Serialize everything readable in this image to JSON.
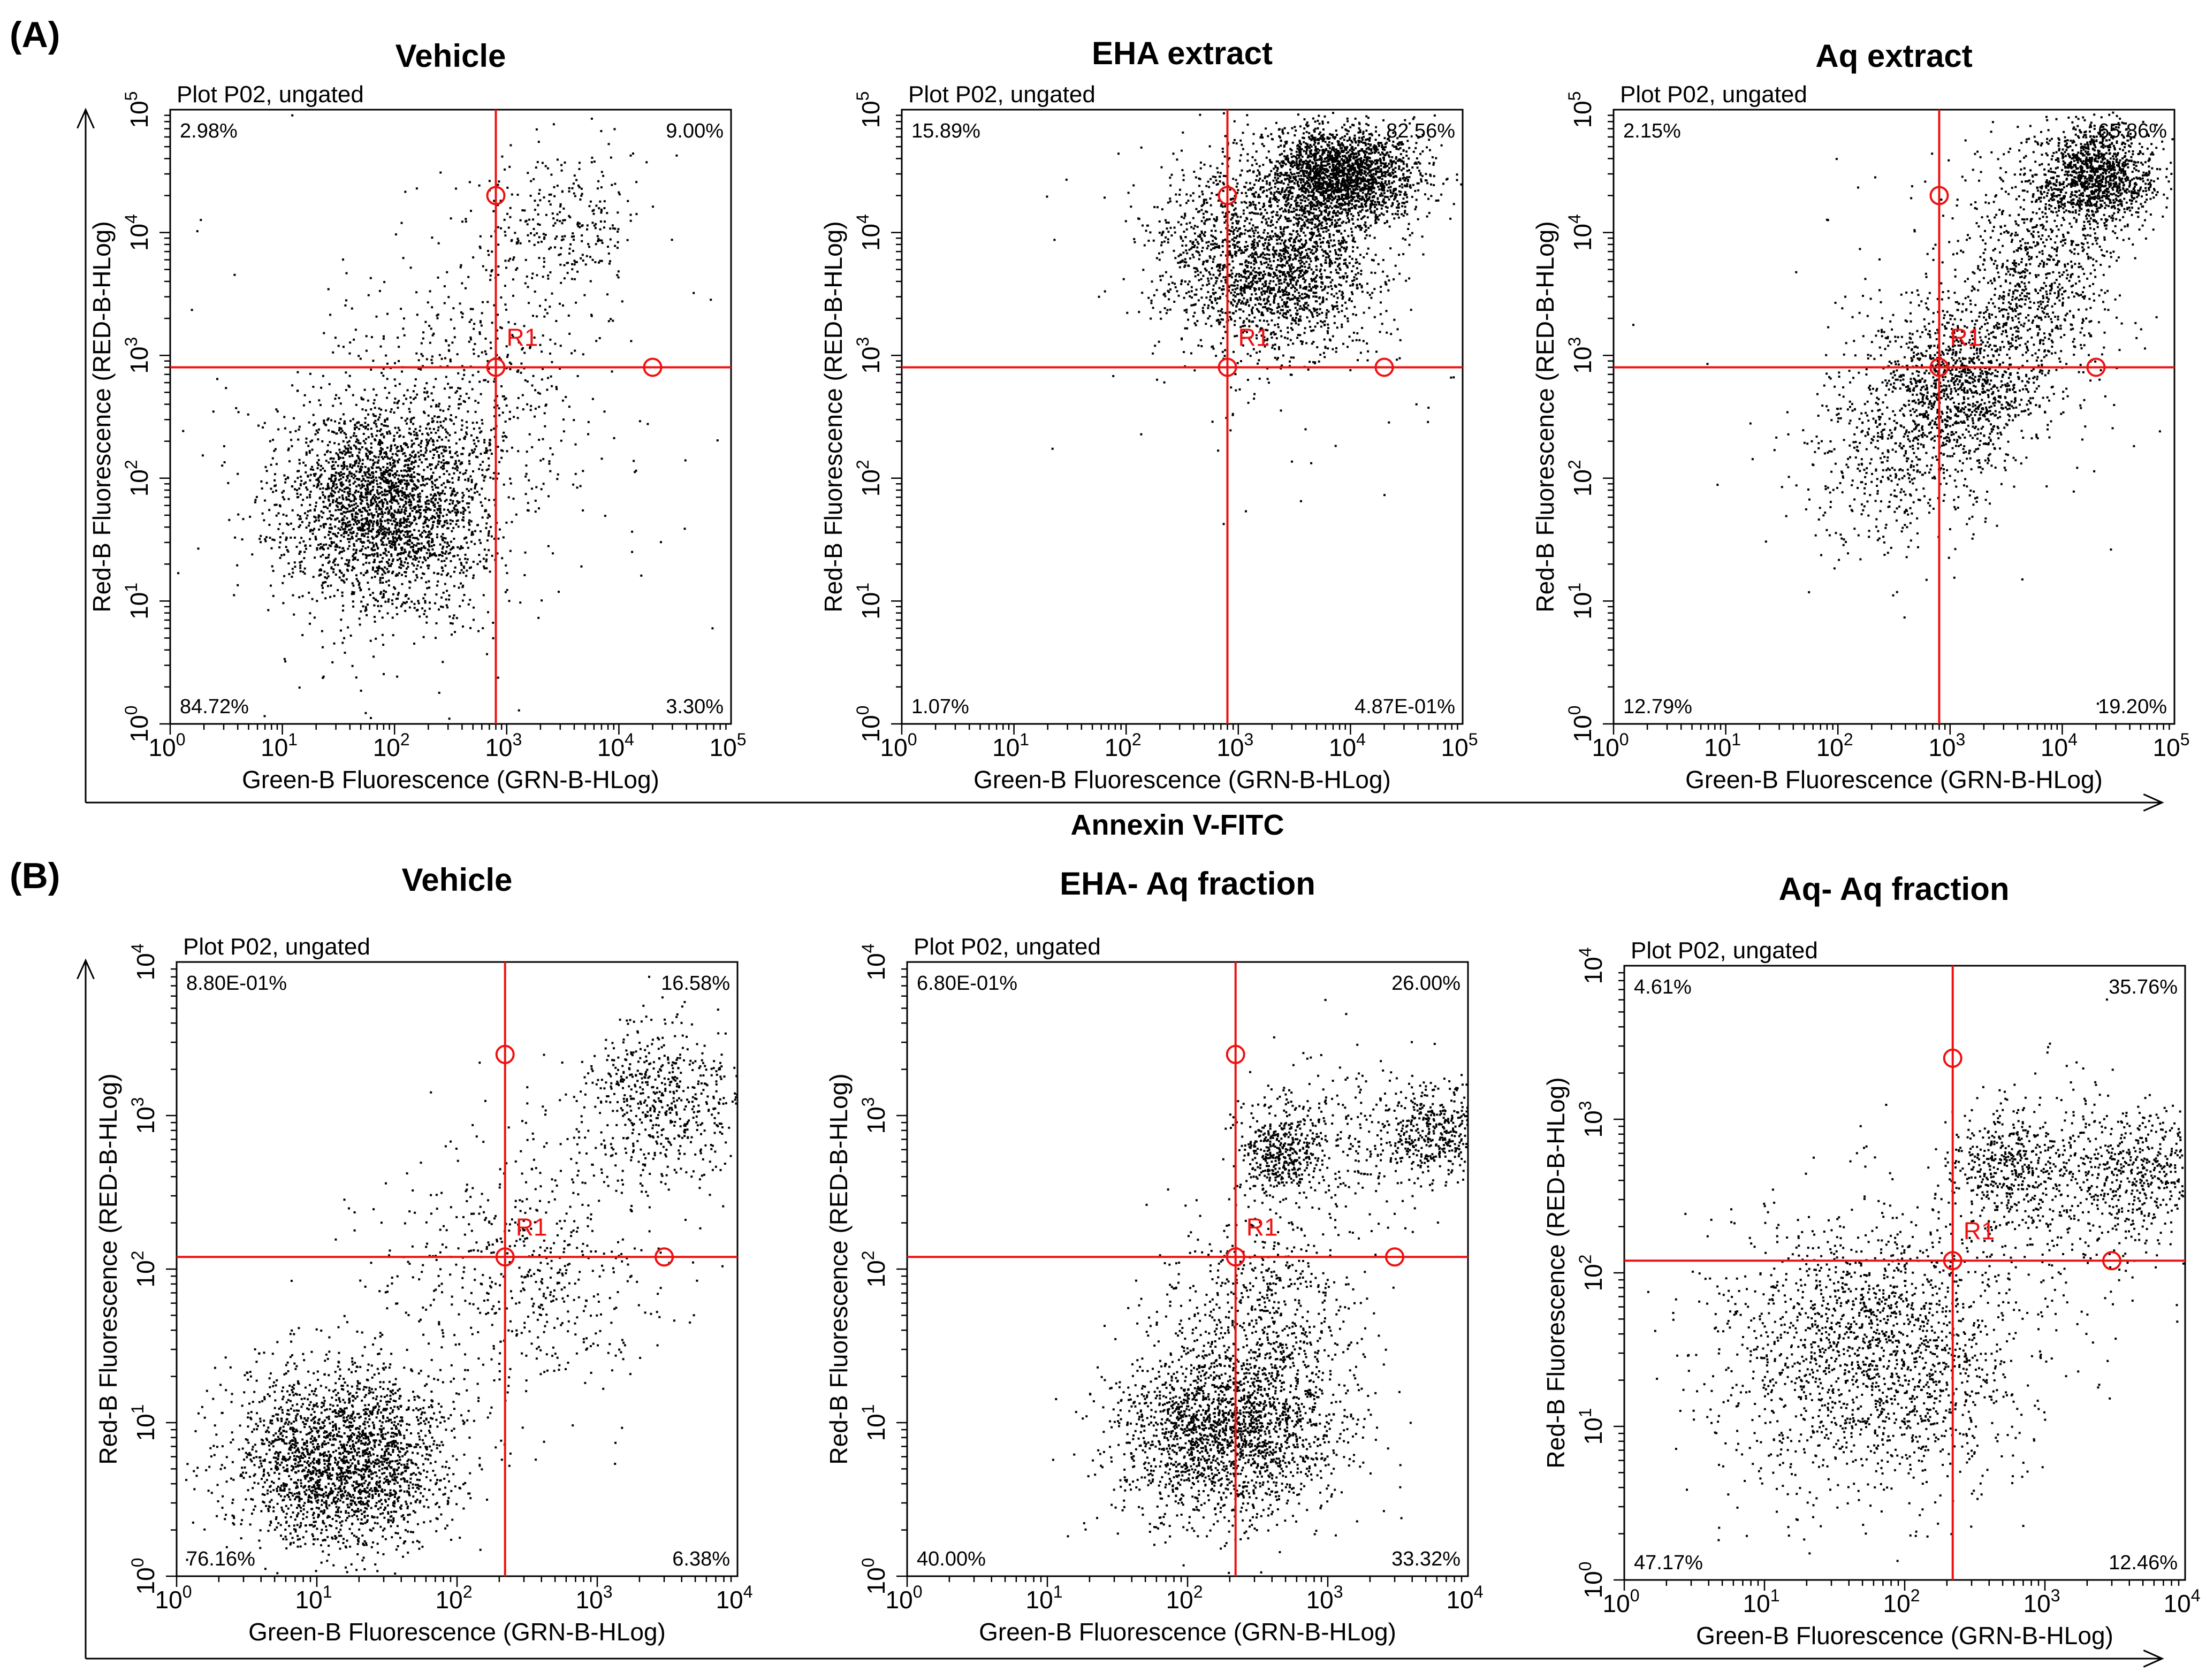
{
  "figure_labels": {
    "a": "(A)",
    "b": "(B)"
  },
  "shared_axis": {
    "xlabel_row_a": "Annexin V-FITC"
  },
  "chart_data": [
    {
      "type": "scatter",
      "panel": "A",
      "title": "Vehicle",
      "plot_label": "Plot P02, ungated",
      "xlabel": "Green-B Fluorescence (GRN-B-HLog)",
      "ylabel": "Red-B Fluorescence (RED-B-HLog)",
      "xscale": "log",
      "yscale": "log",
      "xlim": [
        1,
        100000
      ],
      "ylim": [
        1,
        100000
      ],
      "x_ticks": [
        1,
        10,
        100,
        1000,
        10000,
        100000
      ],
      "y_ticks": [
        1,
        10,
        100,
        1000,
        10000,
        100000
      ],
      "gate_x": 800,
      "gate_y": 800,
      "gate_label": "R1",
      "gate_handles": [
        [
          800,
          20000
        ],
        [
          800,
          800
        ],
        [
          20000,
          800
        ]
      ],
      "quadrants": {
        "ul": "2.98%",
        "ur": "9.00%",
        "ll": "84.72%",
        "lr": "3.30%"
      },
      "clusters": [
        {
          "cx": 80,
          "cy": 60,
          "sx": 0.45,
          "sy": 0.42,
          "n": 2600
        },
        {
          "cx": 3000,
          "cy": 12000,
          "sx": 0.35,
          "sy": 0.3,
          "n": 300
        },
        {
          "cx": 500,
          "cy": 500,
          "sx": 0.55,
          "sy": 0.6,
          "n": 500
        },
        {
          "cx": 100,
          "cy": 100,
          "sx": 1.0,
          "sy": 1.0,
          "n": 200
        }
      ]
    },
    {
      "type": "scatter",
      "panel": "A",
      "title": "EHA  extract",
      "plot_label": "Plot P02, ungated",
      "xlabel": "Green-B Fluorescence (GRN-B-HLog)",
      "ylabel": "Red-B Fluorescence (RED-B-HLog)",
      "xscale": "log",
      "yscale": "log",
      "xlim": [
        1,
        100000
      ],
      "ylim": [
        1,
        100000
      ],
      "x_ticks": [
        1,
        10,
        100,
        1000,
        10000,
        100000
      ],
      "y_ticks": [
        1,
        10,
        100,
        1000,
        10000,
        100000
      ],
      "gate_x": 800,
      "gate_y": 800,
      "gate_label": "R1",
      "gate_handles": [
        [
          800,
          20000
        ],
        [
          800,
          800
        ],
        [
          20000,
          800
        ]
      ],
      "quadrants": {
        "ul": "15.89%",
        "ur": "82.56%",
        "ll": "1.07%",
        "lr": "4.87E-01%"
      },
      "clusters": [
        {
          "cx": 8000,
          "cy": 30000,
          "sx": 0.35,
          "sy": 0.2,
          "n": 2200
        },
        {
          "cx": 2500,
          "cy": 5000,
          "sx": 0.4,
          "sy": 0.35,
          "n": 1600
        },
        {
          "cx": 600,
          "cy": 8000,
          "sx": 0.35,
          "sy": 0.35,
          "n": 500
        },
        {
          "cx": 3000,
          "cy": 3000,
          "sx": 0.9,
          "sy": 0.9,
          "n": 100
        }
      ]
    },
    {
      "type": "scatter",
      "panel": "A",
      "title": "Aq  extract",
      "plot_label": "Plot P02, ungated",
      "xlabel": "Green-B Fluorescence (GRN-B-HLog)",
      "ylabel": "Red-B Fluorescence (RED-B-HLog)",
      "xscale": "log",
      "yscale": "log",
      "xlim": [
        1,
        100000
      ],
      "ylim": [
        1,
        100000
      ],
      "x_ticks": [
        1,
        10,
        100,
        1000,
        10000,
        100000
      ],
      "y_ticks": [
        1,
        10,
        100,
        1000,
        10000,
        100000
      ],
      "gate_x": 800,
      "gate_y": 800,
      "gate_label": "R1",
      "gate_handles": [
        [
          800,
          20000
        ],
        [
          800,
          800
        ],
        [
          20000,
          800
        ]
      ],
      "quadrants": {
        "ul": "2.15%",
        "ur": "65.86%",
        "ll": "12.79%",
        "lr": "19.20%"
      },
      "clusters": [
        {
          "cx": 20000,
          "cy": 30000,
          "sx": 0.25,
          "sy": 0.2,
          "n": 1200
        },
        {
          "cx": 6000,
          "cy": 5000,
          "sx": 0.35,
          "sy": 0.5,
          "n": 900
        },
        {
          "cx": 1200,
          "cy": 600,
          "sx": 0.35,
          "sy": 0.35,
          "n": 1100
        },
        {
          "cx": 300,
          "cy": 150,
          "sx": 0.4,
          "sy": 0.4,
          "n": 500
        },
        {
          "cx": 1000,
          "cy": 1000,
          "sx": 0.9,
          "sy": 0.9,
          "n": 100
        }
      ]
    },
    {
      "type": "scatter",
      "panel": "B",
      "title": "Vehicle",
      "plot_label": "Plot P02, ungated",
      "xlabel": "Green-B Fluorescence (GRN-B-HLog)",
      "ylabel": "Red-B Fluorescence (RED-B-HLog)",
      "xscale": "log",
      "yscale": "log",
      "xlim": [
        1,
        10000
      ],
      "ylim": [
        1,
        10000
      ],
      "x_ticks": [
        1,
        10,
        100,
        1000,
        10000
      ],
      "y_ticks": [
        1,
        10,
        100,
        1000,
        10000
      ],
      "gate_x": 220,
      "gate_y": 120,
      "gate_label": "R1",
      "gate_handles": [
        [
          220,
          2500
        ],
        [
          220,
          120
        ],
        [
          3000,
          120
        ]
      ],
      "quadrants": {
        "ul": "8.80E-01%",
        "ur": "16.58%",
        "ll": "76.16%",
        "lr": "6.38%"
      },
      "clusters": [
        {
          "cx": 15,
          "cy": 6,
          "sx": 0.4,
          "sy": 0.3,
          "n": 2400
        },
        {
          "cx": 3000,
          "cy": 1200,
          "sx": 0.3,
          "sy": 0.25,
          "n": 600
        },
        {
          "cx": 300,
          "cy": 100,
          "sx": 0.5,
          "sy": 0.45,
          "n": 600
        }
      ]
    },
    {
      "type": "scatter",
      "panel": "B",
      "title": "EHA- Aq fraction",
      "plot_label": "Plot P02, ungated",
      "xlabel": "Green-B Fluorescence (GRN-B-HLog)",
      "ylabel": "Red-B Fluorescence (RED-B-HLog)",
      "xscale": "log",
      "yscale": "log",
      "xlim": [
        1,
        10000
      ],
      "ylim": [
        1,
        10000
      ],
      "x_ticks": [
        1,
        10,
        100,
        1000,
        10000
      ],
      "y_ticks": [
        1,
        10,
        100,
        1000,
        10000
      ],
      "gate_x": 220,
      "gate_y": 120,
      "gate_label": "R1",
      "gate_handles": [
        [
          220,
          2500
        ],
        [
          220,
          120
        ],
        [
          3000,
          120
        ]
      ],
      "quadrants": {
        "ul": "6.80E-01%",
        "ur": "26.00%",
        "ll": "40.00%",
        "lr": "33.32%"
      },
      "clusters": [
        {
          "cx": 180,
          "cy": 9,
          "sx": 0.4,
          "sy": 0.3,
          "n": 2000
        },
        {
          "cx": 350,
          "cy": 40,
          "sx": 0.35,
          "sy": 0.4,
          "n": 700
        },
        {
          "cx": 450,
          "cy": 600,
          "sx": 0.15,
          "sy": 0.15,
          "n": 400
        },
        {
          "cx": 6000,
          "cy": 800,
          "sx": 0.2,
          "sy": 0.15,
          "n": 400
        },
        {
          "cx": 1500,
          "cy": 700,
          "sx": 0.4,
          "sy": 0.3,
          "n": 300
        }
      ]
    },
    {
      "type": "scatter",
      "panel": "B",
      "title": "Aq- Aq fraction",
      "plot_label": "Plot P02, ungated",
      "xlabel": "Green-B Fluorescence (GRN-B-HLog)",
      "ylabel": "Red-B Fluorescence (RED-B-HLog)",
      "xscale": "log",
      "yscale": "log",
      "xlim": [
        1,
        10000
      ],
      "ylim": [
        1,
        10000
      ],
      "x_ticks": [
        1,
        10,
        100,
        1000,
        10000
      ],
      "y_ticks": [
        1,
        10,
        100,
        1000,
        10000
      ],
      "gate_x": 220,
      "gate_y": 120,
      "gate_label": "R1",
      "gate_handles": [
        [
          220,
          2500
        ],
        [
          220,
          120
        ],
        [
          3000,
          120
        ]
      ],
      "quadrants": {
        "ul": "4.61%",
        "ur": "35.76%",
        "ll": "47.17%",
        "lr": "12.46%"
      },
      "clusters": [
        {
          "cx": 60,
          "cy": 30,
          "sx": 0.55,
          "sy": 0.45,
          "n": 1900
        },
        {
          "cx": 500,
          "cy": 500,
          "sx": 0.2,
          "sy": 0.2,
          "n": 400
        },
        {
          "cx": 5000,
          "cy": 500,
          "sx": 0.3,
          "sy": 0.2,
          "n": 500
        },
        {
          "cx": 1500,
          "cy": 300,
          "sx": 0.35,
          "sy": 0.35,
          "n": 300
        }
      ]
    }
  ]
}
